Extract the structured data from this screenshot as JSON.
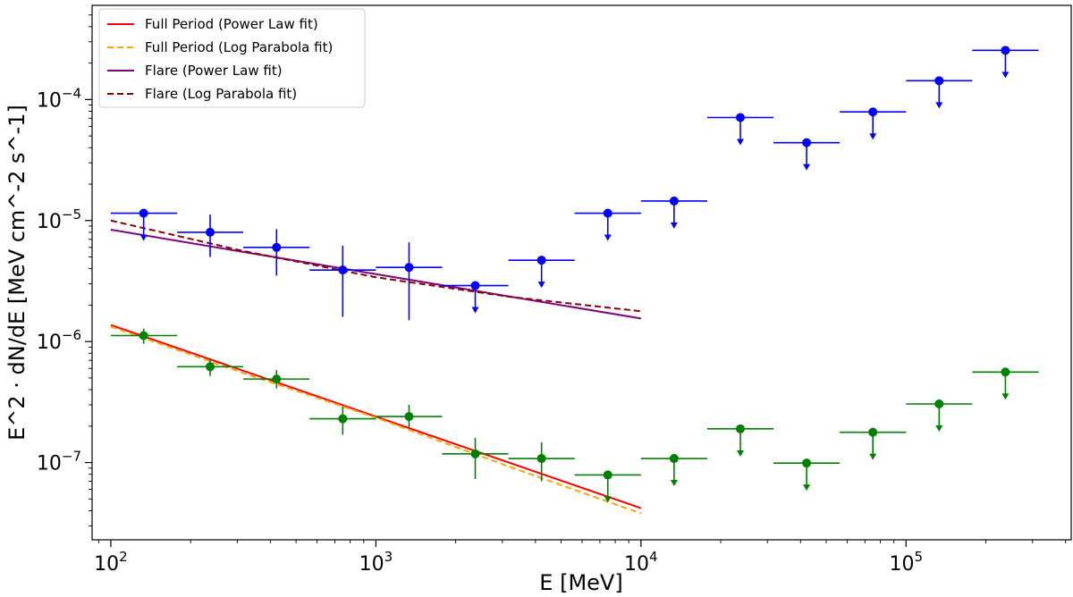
{
  "chart_data": {
    "type": "scatter",
    "xlabel": "E [MeV]",
    "ylabel": "E^2 · dN/dE [MeV cm^-2 s^-1]",
    "x_scale": "log",
    "y_scale": "log",
    "xlim": [
      85,
      420000
    ],
    "ylim": [
      2.3e-08,
      0.0006
    ],
    "grid": false,
    "legend_position": "top-left",
    "x_ticks": [
      "10^2",
      "10^3",
      "10^4",
      "10^5"
    ],
    "y_ticks": [
      "10^-7",
      "10^-6",
      "10^-5",
      "10^-4"
    ],
    "legend": [
      {
        "label": "Full Period (Power Law fit)",
        "color": "#ff0000",
        "style": "solid"
      },
      {
        "label": "Full Period (Log Parabola fit)",
        "color": "#ffa500",
        "style": "dashed"
      },
      {
        "label": "Flare (Power Law fit)",
        "color": "#800080",
        "style": "solid"
      },
      {
        "label": "Flare (Log Parabola fit)",
        "color": "#8b0000",
        "style": "dashed"
      }
    ],
    "series": [
      {
        "kind": "points",
        "color": "#0000ff",
        "points": [
          {
            "x": 133,
            "y": 1.15e-05,
            "xlo": 100,
            "xhi": 178,
            "ul": true,
            "ylo": null,
            "yhi": null
          },
          {
            "x": 237,
            "y": 8e-06,
            "xlo": 178,
            "xhi": 316,
            "ul": false,
            "ylo": 5e-06,
            "yhi": 1.12e-05
          },
          {
            "x": 422,
            "y": 6e-06,
            "xlo": 316,
            "xhi": 562,
            "ul": false,
            "ylo": 3.5e-06,
            "yhi": 8.5e-06
          },
          {
            "x": 750,
            "y": 3.9e-06,
            "xlo": 562,
            "xhi": 1000,
            "ul": false,
            "ylo": 1.6e-06,
            "yhi": 6.2e-06
          },
          {
            "x": 1334,
            "y": 4.1e-06,
            "xlo": 1000,
            "xhi": 1778,
            "ul": false,
            "ylo": 1.5e-06,
            "yhi": 6.6e-06
          },
          {
            "x": 2371,
            "y": 2.9e-06,
            "xlo": 1778,
            "xhi": 3162,
            "ul": true,
            "ylo": null,
            "yhi": null
          },
          {
            "x": 4217,
            "y": 4.7e-06,
            "xlo": 3162,
            "xhi": 5623,
            "ul": true,
            "ylo": null,
            "yhi": null
          },
          {
            "x": 7499,
            "y": 1.15e-05,
            "xlo": 5623,
            "xhi": 10000,
            "ul": true,
            "ylo": null,
            "yhi": null
          },
          {
            "x": 13335,
            "y": 1.45e-05,
            "xlo": 10000,
            "xhi": 17783,
            "ul": true,
            "ylo": null,
            "yhi": null
          },
          {
            "x": 23714,
            "y": 7.1e-05,
            "xlo": 17783,
            "xhi": 31623,
            "ul": true,
            "ylo": null,
            "yhi": null
          },
          {
            "x": 42170,
            "y": 4.4e-05,
            "xlo": 31623,
            "xhi": 56234,
            "ul": true,
            "ylo": null,
            "yhi": null
          },
          {
            "x": 74989,
            "y": 7.9e-05,
            "xlo": 56234,
            "xhi": 100000,
            "ul": true,
            "ylo": null,
            "yhi": null
          },
          {
            "x": 133352,
            "y": 0.000143,
            "xlo": 100000,
            "xhi": 177828,
            "ul": true,
            "ylo": null,
            "yhi": null
          },
          {
            "x": 237137,
            "y": 0.000255,
            "xlo": 177828,
            "xhi": 316228,
            "ul": true,
            "ylo": null,
            "yhi": null
          }
        ]
      },
      {
        "kind": "points",
        "color": "#008000",
        "points": [
          {
            "x": 133,
            "y": 1.12e-06,
            "xlo": 100,
            "xhi": 178,
            "ul": false,
            "ylo": 9.6e-07,
            "yhi": 1.28e-06
          },
          {
            "x": 237,
            "y": 6.2e-07,
            "xlo": 178,
            "xhi": 316,
            "ul": false,
            "ylo": 5.2e-07,
            "yhi": 7.3e-07
          },
          {
            "x": 422,
            "y": 4.9e-07,
            "xlo": 316,
            "xhi": 562,
            "ul": false,
            "ylo": 4.1e-07,
            "yhi": 5.8e-07
          },
          {
            "x": 750,
            "y": 2.3e-07,
            "xlo": 562,
            "xhi": 1000,
            "ul": false,
            "ylo": 1.7e-07,
            "yhi": 2.9e-07
          },
          {
            "x": 1334,
            "y": 2.4e-07,
            "xlo": 1000,
            "xhi": 1778,
            "ul": false,
            "ylo": 1.9e-07,
            "yhi": 3e-07
          },
          {
            "x": 2371,
            "y": 1.18e-07,
            "xlo": 1778,
            "xhi": 3162,
            "ul": false,
            "ylo": 7.3e-08,
            "yhi": 1.6e-07
          },
          {
            "x": 4217,
            "y": 1.08e-07,
            "xlo": 3162,
            "xhi": 5623,
            "ul": false,
            "ylo": 7e-08,
            "yhi": 1.47e-07
          },
          {
            "x": 7499,
            "y": 7.9e-08,
            "xlo": 5623,
            "xhi": 10000,
            "ul": true,
            "ylo": null,
            "yhi": null
          },
          {
            "x": 13335,
            "y": 1.08e-07,
            "xlo": 10000,
            "xhi": 17783,
            "ul": true,
            "ylo": null,
            "yhi": null
          },
          {
            "x": 23714,
            "y": 1.9e-07,
            "xlo": 17783,
            "xhi": 31623,
            "ul": true,
            "ylo": null,
            "yhi": null
          },
          {
            "x": 42170,
            "y": 9.9e-08,
            "xlo": 31623,
            "xhi": 56234,
            "ul": true,
            "ylo": null,
            "yhi": null
          },
          {
            "x": 74989,
            "y": 1.78e-07,
            "xlo": 56234,
            "xhi": 100000,
            "ul": true,
            "ylo": null,
            "yhi": null
          },
          {
            "x": 133352,
            "y": 3.05e-07,
            "xlo": 100000,
            "xhi": 177828,
            "ul": true,
            "ylo": null,
            "yhi": null
          },
          {
            "x": 237137,
            "y": 5.6e-07,
            "xlo": 177828,
            "xhi": 316228,
            "ul": true,
            "ylo": null,
            "yhi": null
          }
        ]
      },
      {
        "kind": "line",
        "model": "power_law",
        "legend_index": 0,
        "color": "#ff0000",
        "dash": false,
        "x": [
          100,
          10000
        ],
        "y": [
          1.37e-06,
          4.2e-08
        ]
      },
      {
        "kind": "line",
        "model": "log_parabola",
        "legend_index": 1,
        "color": "#ffa500",
        "dash": true,
        "x": [
          100,
          316,
          1000,
          3162,
          10000
        ],
        "y": [
          1.33e-06,
          5.5e-07,
          2.35e-07,
          9.3e-08,
          3.8e-08
        ]
      },
      {
        "kind": "line",
        "model": "power_law",
        "legend_index": 2,
        "color": "#800080",
        "dash": false,
        "x": [
          100,
          10000
        ],
        "y": [
          8.4e-06,
          1.55e-06
        ]
      },
      {
        "kind": "line",
        "model": "log_parabola",
        "legend_index": 3,
        "color": "#8b0000",
        "dash": true,
        "x": [
          100,
          316,
          1000,
          3162,
          10000
        ],
        "y": [
          1e-05,
          5.6e-06,
          3.4e-06,
          2.35e-06,
          1.78e-06
        ]
      }
    ]
  }
}
